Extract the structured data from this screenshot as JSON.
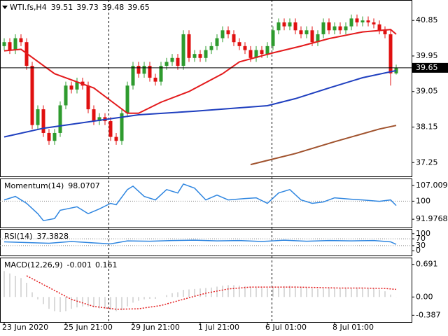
{
  "chart_data": [
    {
      "type": "candlestick",
      "title": "WTI.fs,H4",
      "xlim": [
        -0.75,
        72.75
      ],
      "ylim": [
        36.9,
        41.35
      ],
      "yticks": [
        37.25,
        38.15,
        39.05,
        39.95,
        40.85
      ],
      "up_color": "#2e9b2e",
      "down_color": "#e01010",
      "open": [
        40.2,
        40.3,
        40.1,
        40.4,
        40.3,
        39.7,
        38.2,
        38.6,
        38.0,
        37.8,
        38.0,
        38.7,
        39.2,
        39.1,
        39.3,
        39.2,
        38.6,
        38.3,
        38.4,
        38.3,
        37.9,
        37.8,
        38.5,
        39.2,
        39.7,
        39.5,
        39.7,
        39.4,
        39.3,
        39.7,
        39.8,
        39.9,
        39.7,
        40.5,
        39.9,
        40.0,
        39.9,
        40.1,
        40.2,
        40.4,
        40.6,
        40.5,
        40.3,
        40.2,
        40.1,
        39.9,
        40.1,
        40.0,
        40.2,
        40.6,
        40.8,
        40.7,
        40.8,
        40.6,
        40.5,
        40.6,
        40.3,
        40.5,
        40.8,
        40.6,
        40.7,
        40.6,
        40.7,
        40.9,
        40.8,
        40.85,
        40.8,
        40.75,
        40.6,
        40.5,
        39.51
      ],
      "high": [
        40.4,
        40.4,
        40.5,
        40.5,
        40.4,
        39.8,
        38.7,
        38.7,
        38.1,
        38.1,
        38.8,
        39.3,
        39.3,
        39.4,
        39.4,
        39.3,
        38.7,
        38.5,
        38.5,
        38.4,
        38.0,
        38.6,
        39.3,
        39.8,
        39.8,
        39.8,
        39.8,
        39.5,
        39.8,
        39.9,
        40.0,
        40.0,
        40.6,
        40.6,
        40.1,
        40.1,
        40.2,
        40.3,
        40.5,
        40.7,
        40.7,
        40.6,
        40.4,
        40.3,
        40.2,
        40.2,
        40.2,
        40.3,
        40.7,
        40.9,
        40.9,
        40.9,
        40.9,
        40.7,
        40.7,
        40.7,
        40.6,
        40.9,
        40.9,
        40.8,
        40.8,
        40.8,
        41.0,
        41.0,
        40.95,
        40.95,
        40.9,
        40.85,
        40.7,
        40.6,
        39.73
      ],
      "low": [
        40.1,
        40.0,
        40.0,
        40.2,
        39.6,
        38.1,
        38.1,
        37.9,
        37.7,
        37.7,
        37.9,
        38.6,
        39.0,
        39.0,
        39.1,
        38.5,
        38.2,
        38.2,
        38.2,
        37.8,
        37.7,
        37.7,
        38.4,
        39.1,
        39.4,
        39.4,
        39.3,
        39.2,
        39.2,
        39.6,
        39.7,
        39.6,
        39.6,
        39.8,
        39.8,
        39.8,
        39.8,
        40.0,
        40.1,
        40.3,
        40.4,
        40.2,
        40.1,
        40.0,
        39.8,
        39.8,
        39.9,
        39.9,
        40.1,
        40.5,
        40.6,
        40.6,
        40.5,
        40.4,
        40.4,
        40.2,
        40.2,
        40.4,
        40.5,
        40.5,
        40.5,
        40.5,
        40.6,
        40.7,
        40.7,
        40.7,
        40.65,
        40.5,
        40.4,
        39.2,
        39.48
      ],
      "close": [
        40.3,
        40.1,
        40.4,
        40.3,
        39.7,
        38.2,
        38.6,
        38.0,
        37.8,
        38.0,
        38.7,
        39.2,
        39.1,
        39.3,
        39.2,
        38.6,
        38.3,
        38.4,
        38.3,
        37.9,
        37.8,
        38.5,
        39.2,
        39.7,
        39.5,
        39.7,
        39.4,
        39.3,
        39.7,
        39.8,
        39.9,
        39.7,
        40.5,
        39.9,
        40.0,
        39.9,
        40.1,
        40.2,
        40.4,
        40.6,
        40.5,
        40.3,
        40.2,
        40.1,
        39.9,
        40.1,
        40.0,
        40.2,
        40.6,
        40.8,
        40.7,
        40.8,
        40.6,
        40.5,
        40.6,
        40.3,
        40.5,
        40.8,
        40.6,
        40.7,
        40.6,
        40.7,
        40.9,
        40.8,
        40.85,
        40.8,
        40.75,
        40.6,
        40.5,
        39.51,
        39.65
      ],
      "lines": [
        {
          "color": "#e31a1c",
          "x": [
            0,
            3,
            9,
            16,
            22,
            24,
            28,
            33,
            39,
            42,
            48,
            53,
            58,
            64,
            69,
            70
          ],
          "values": [
            40.08,
            40.12,
            39.5,
            39.14,
            38.5,
            38.5,
            38.78,
            39.05,
            39.5,
            39.8,
            40.03,
            40.2,
            40.39,
            40.56,
            40.62,
            40.5
          ]
        },
        {
          "color": "#1f3fbf",
          "x": [
            0,
            7,
            18,
            24,
            34,
            47,
            52,
            58,
            64,
            70
          ],
          "values": [
            37.9,
            38.12,
            38.34,
            38.46,
            38.55,
            38.69,
            38.87,
            39.14,
            39.4,
            39.58
          ]
        },
        {
          "color": "#a0522d",
          "x": [
            44,
            52,
            59,
            67,
            70
          ],
          "values": [
            37.2,
            37.48,
            37.78,
            38.1,
            38.19
          ]
        }
      ]
    },
    {
      "type": "line",
      "title": "Momentum(14)",
      "xlim": [
        -0.75,
        72.75
      ],
      "ylim": [
        88.3,
        109.77
      ],
      "yticks": [
        107.009,
        100,
        91.9768
      ],
      "levels": [
        100
      ],
      "lines": [
        {
          "color": "#2f86e0",
          "x": [
            0,
            2,
            4,
            6,
            7,
            9,
            10,
            13,
            15,
            17,
            19,
            20,
            22,
            23,
            25,
            27,
            29,
            31,
            32,
            34,
            36,
            38,
            40,
            43,
            45,
            47,
            49,
            51,
            53,
            55,
            57,
            59,
            62,
            64,
            67,
            69,
            70
          ],
          "values": [
            100.57,
            102.1,
            99.03,
            94.43,
            91.36,
            92.28,
            95.96,
            97.5,
            94.43,
            96.58,
            99.03,
            98.42,
            105.17,
            106.7,
            102.1,
            100.57,
            105.17,
            103.63,
            107.62,
            105.78,
            100.57,
            102.71,
            100.57,
            101.18,
            101.49,
            99.03,
            103.63,
            105.17,
            100.57,
            99.03,
            99.65,
            101.49,
            100.87,
            100.57,
            99.95,
            100.57,
            98.0707
          ]
        }
      ]
    },
    {
      "type": "line",
      "title": "RSI(14)",
      "xlim": [
        -0.75,
        72.75
      ],
      "ylim": [
        -28,
        124
      ],
      "yticks": [
        100,
        70,
        30,
        0
      ],
      "levels": [
        70,
        30
      ],
      "lines": [
        {
          "color": "#2f86e0",
          "x": [
            0,
            4,
            8,
            12,
            16,
            19,
            22,
            26,
            30,
            34,
            38,
            42,
            46,
            50,
            54,
            58,
            62,
            66,
            69,
            70
          ],
          "values": [
            52,
            48,
            44,
            54,
            46,
            40,
            58,
            56,
            60,
            62,
            58,
            60,
            54,
            62,
            56,
            60,
            58,
            60,
            52,
            37.3828
          ]
        }
      ]
    },
    {
      "type": "bar",
      "title": "MACD(12,26,9)",
      "xlim": [
        -0.75,
        72.75
      ],
      "ylim": [
        -0.53,
        0.82
      ],
      "yticks": [
        0.691,
        {
          "value": 0,
          "label": "0.00"
        },
        -0.387
      ],
      "color": "#b4b4b4",
      "values": [
        0.55,
        0.5,
        0.45,
        0.4,
        0.3,
        0.1,
        -0.05,
        -0.15,
        -0.25,
        -0.3,
        -0.32,
        -0.3,
        -0.25,
        -0.22,
        -0.2,
        -0.2,
        -0.22,
        -0.24,
        -0.25,
        -0.27,
        -0.3,
        -0.28,
        -0.2,
        -0.12,
        -0.08,
        -0.05,
        -0.04,
        -0.04,
        0.0,
        0.04,
        0.08,
        0.1,
        0.15,
        0.16,
        0.17,
        0.18,
        0.19,
        0.2,
        0.22,
        0.24,
        0.25,
        0.25,
        0.24,
        0.23,
        0.21,
        0.2,
        0.19,
        0.19,
        0.2,
        0.22,
        0.23,
        0.24,
        0.23,
        0.22,
        0.2,
        0.18,
        0.17,
        0.18,
        0.19,
        0.19,
        0.18,
        0.18,
        0.19,
        0.2,
        0.2,
        0.19,
        0.18,
        0.16,
        0.12,
        0.05,
        -0.001
      ],
      "lines": [
        {
          "color": "#e31a1c",
          "style": "dotted",
          "x": [
            4,
            8,
            12,
            16,
            20,
            24,
            28,
            32,
            36,
            40,
            44,
            48,
            52,
            56,
            60,
            64,
            68,
            70
          ],
          "values": [
            0.45,
            0.2,
            -0.05,
            -0.2,
            -0.26,
            -0.25,
            -0.18,
            -0.05,
            0.08,
            0.17,
            0.21,
            0.21,
            0.21,
            0.2,
            0.19,
            0.19,
            0.18,
            0.161
          ]
        }
      ],
      "xticks": [
        {
          "value": 0,
          "label": "23 Jun 2020"
        },
        {
          "value": 11,
          "label": "25 Jun 21:00"
        },
        {
          "value": 23,
          "label": "29 Jun 21:00"
        },
        {
          "value": 35,
          "label": "1 Jul 21:00"
        },
        {
          "value": 47,
          "label": "6 Jul 01:00"
        },
        {
          "value": 59,
          "label": "8 Jul 01:00"
        }
      ]
    }
  ]
}
